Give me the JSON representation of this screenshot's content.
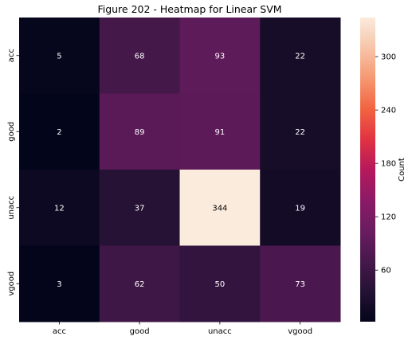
{
  "chart_data": {
    "type": "heatmap",
    "title": "Figure 202 - Heatmap for Linear SVM",
    "xlabel": "",
    "ylabel": "",
    "x_categories": [
      "acc",
      "good",
      "unacc",
      "vgood"
    ],
    "y_categories": [
      "acc",
      "good",
      "unacc",
      "vgood"
    ],
    "values": [
      [
        5,
        68,
        93,
        22
      ],
      [
        2,
        89,
        91,
        22
      ],
      [
        12,
        37,
        344,
        19
      ],
      [
        3,
        62,
        50,
        73
      ]
    ],
    "vmin": 2,
    "vmax": 344,
    "colorbar": {
      "label": "Count",
      "ticks": [
        60,
        120,
        180,
        240,
        300
      ]
    },
    "colormap": "rocket",
    "grid": false,
    "legend": "none"
  }
}
